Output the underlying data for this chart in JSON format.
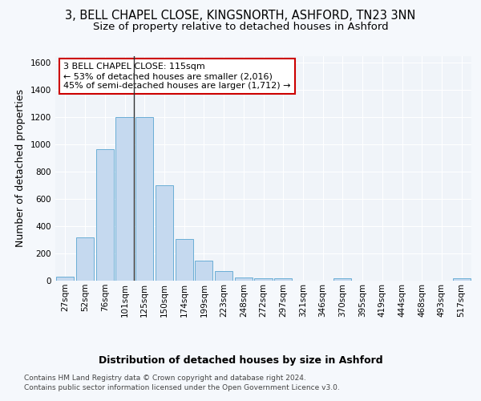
{
  "title": "3, BELL CHAPEL CLOSE, KINGSNORTH, ASHFORD, TN23 3NN",
  "subtitle": "Size of property relative to detached houses in Ashford",
  "xlabel": "Distribution of detached houses by size in Ashford",
  "ylabel": "Number of detached properties",
  "categories": [
    "27sqm",
    "52sqm",
    "76sqm",
    "101sqm",
    "125sqm",
    "150sqm",
    "174sqm",
    "199sqm",
    "223sqm",
    "248sqm",
    "272sqm",
    "297sqm",
    "321sqm",
    "346sqm",
    "370sqm",
    "395sqm",
    "419sqm",
    "444sqm",
    "468sqm",
    "493sqm",
    "517sqm"
  ],
  "values": [
    30,
    320,
    965,
    1200,
    1200,
    700,
    305,
    150,
    70,
    25,
    20,
    20,
    0,
    0,
    15,
    0,
    0,
    0,
    0,
    0,
    15
  ],
  "bar_color": "#c5d9ef",
  "bar_edge_color": "#6aaed6",
  "highlight_line_color": "#333333",
  "property_label": "3 BELL CHAPEL CLOSE: 115sqm",
  "annotation_line1": "← 53% of detached houses are smaller (2,016)",
  "annotation_line2": "45% of semi-detached houses are larger (1,712) →",
  "annotation_box_color": "#ffffff",
  "annotation_box_edge": "#cc0000",
  "ylim": [
    0,
    1650
  ],
  "yticks": [
    0,
    200,
    400,
    600,
    800,
    1000,
    1200,
    1400,
    1600
  ],
  "bg_color": "#f5f8fc",
  "plot_bg_color": "#f0f4f9",
  "grid_color": "#ffffff",
  "footer_line1": "Contains HM Land Registry data © Crown copyright and database right 2024.",
  "footer_line2": "Contains public sector information licensed under the Open Government Licence v3.0.",
  "title_fontsize": 10.5,
  "subtitle_fontsize": 9.5,
  "axis_label_fontsize": 9,
  "tick_fontsize": 7.5,
  "annotation_fontsize": 8,
  "footer_fontsize": 6.5
}
